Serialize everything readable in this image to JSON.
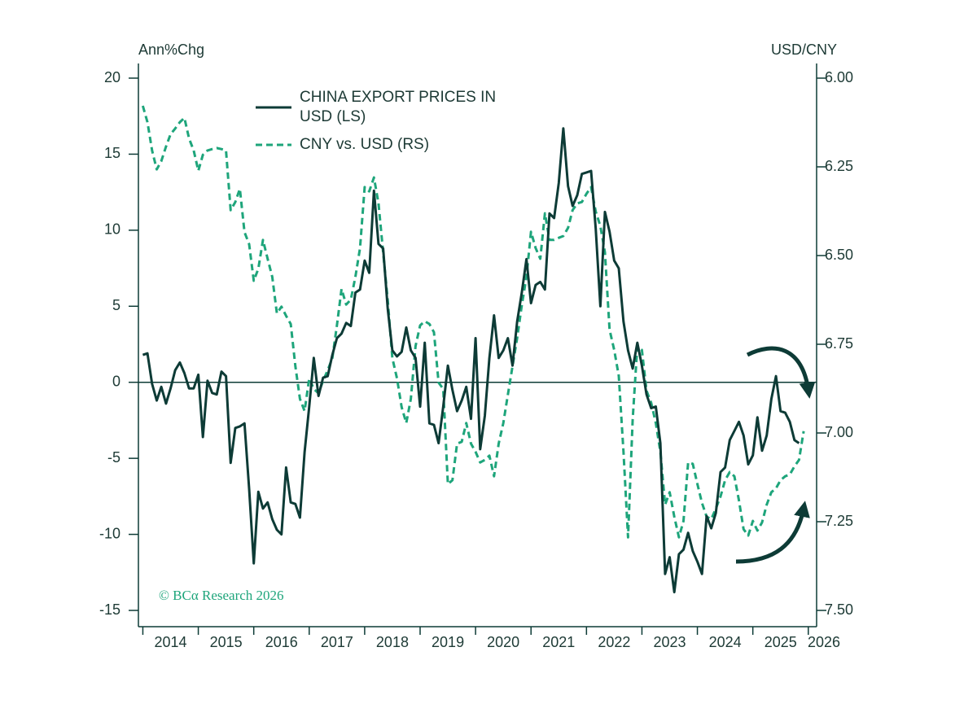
{
  "chart_data": {
    "type": "line",
    "y_label": "Ann%Chg",
    "y2_label": "USD/CNY",
    "source": "© BCα Research 2026",
    "x": [
      2014,
      2014.083,
      2014.167,
      2014.25,
      2014.333,
      2014.417,
      2014.5,
      2014.583,
      2014.667,
      2014.75,
      2014.833,
      2014.917,
      2015,
      2015.083,
      2015.167,
      2015.25,
      2015.333,
      2015.417,
      2015.5,
      2015.583,
      2015.667,
      2015.75,
      2015.833,
      2015.917,
      2016,
      2016.083,
      2016.167,
      2016.25,
      2016.333,
      2016.417,
      2016.5,
      2016.583,
      2016.667,
      2016.75,
      2016.833,
      2016.917,
      2017,
      2017.083,
      2017.167,
      2017.25,
      2017.333,
      2017.417,
      2017.5,
      2017.583,
      2017.667,
      2017.75,
      2017.833,
      2017.917,
      2018,
      2018.083,
      2018.167,
      2018.25,
      2018.333,
      2018.417,
      2018.5,
      2018.583,
      2018.667,
      2018.75,
      2018.833,
      2018.917,
      2019,
      2019.083,
      2019.167,
      2019.25,
      2019.333,
      2019.417,
      2019.5,
      2019.583,
      2019.667,
      2019.75,
      2019.833,
      2019.917,
      2020,
      2020.083,
      2020.167,
      2020.25,
      2020.333,
      2020.417,
      2020.5,
      2020.583,
      2020.667,
      2020.75,
      2020.833,
      2020.917,
      2021,
      2021.083,
      2021.167,
      2021.25,
      2021.333,
      2021.417,
      2021.5,
      2021.583,
      2021.667,
      2021.75,
      2021.833,
      2021.917,
      2022,
      2022.083,
      2022.167,
      2022.25,
      2022.333,
      2022.417,
      2022.5,
      2022.583,
      2022.667,
      2022.75,
      2022.833,
      2022.917,
      2023,
      2023.083,
      2023.167,
      2023.25,
      2023.333,
      2023.417,
      2023.5,
      2023.583,
      2023.667,
      2023.75,
      2023.833,
      2023.917,
      2024,
      2024.083,
      2024.167,
      2024.25,
      2024.333,
      2024.417,
      2024.5,
      2024.583,
      2024.667,
      2024.75,
      2024.833,
      2024.917,
      2025,
      2025.083,
      2025.167,
      2025.25,
      2025.333,
      2025.417,
      2025.5,
      2025.583,
      2025.667,
      2025.75,
      2025.833,
      2025.917
    ],
    "series": [
      {
        "name": "CHINA EXPORT PRICES IN USD (LS)",
        "color": "#0d3b36",
        "linestyle": "solid",
        "values": [
          1.8,
          1.9,
          -0.1,
          -1.2,
          -0.3,
          -1.4,
          -0.4,
          0.8,
          1.3,
          0.6,
          -0.4,
          -0.4,
          0.5,
          -3.6,
          0.1,
          -0.7,
          -0.8,
          0.7,
          0.4,
          -5.3,
          -3.0,
          -2.9,
          -2.7,
          -7.0,
          -11.9,
          -7.2,
          -8.3,
          -7.9,
          -9.0,
          -9.7,
          -10.0,
          -5.6,
          -7.9,
          -8.0,
          -8.9,
          -4.6,
          -1.6,
          1.6,
          -0.9,
          0.3,
          0.4,
          1.8,
          2.9,
          3.2,
          3.9,
          3.7,
          5.9,
          6.1,
          8.0,
          7.2,
          12.6,
          9.1,
          8.8,
          4.8,
          2.1,
          1.7,
          2.0,
          3.6,
          2.1,
          1.6,
          -1.6,
          2.6,
          -2.7,
          -2.8,
          -4.0,
          -1.6,
          1.1,
          -0.5,
          -1.9,
          -1.2,
          -0.3,
          -2.4,
          2.9,
          -4.4,
          -2.2,
          1.6,
          4.4,
          1.6,
          2.1,
          2.9,
          1.1,
          4.0,
          5.9,
          8.1,
          5.2,
          6.4,
          6.6,
          6.1,
          11.1,
          10.8,
          13.1,
          16.7,
          12.9,
          11.6,
          12.3,
          13.7,
          13.8,
          13.9,
          10.1,
          5.0,
          11.2,
          9.9,
          8.0,
          7.5,
          4.0,
          2.1,
          0.9,
          2.6,
          1.1,
          -0.8,
          -1.7,
          -1.6,
          -4.0,
          -12.6,
          -11.5,
          -13.8,
          -11.3,
          -11.0,
          -9.9,
          -11.1,
          -11.8,
          -12.6,
          -8.8,
          -9.6,
          -8.6,
          -5.9,
          -5.6,
          -3.8,
          -3.2,
          -2.6,
          -3.5,
          -5.4,
          -4.8,
          -2.3,
          -4.5,
          -3.5,
          -1.1,
          0.4,
          -1.9,
          -2.0,
          -2.6,
          -3.8,
          -4.0,
          null
        ]
      },
      {
        "name": "CNY vs. USD (RS)",
        "color": "#1ea57b",
        "linestyle": "dashed",
        "axis": "y2",
        "values": [
          6.078,
          6.124,
          6.204,
          6.257,
          6.234,
          6.193,
          6.158,
          6.142,
          6.124,
          6.112,
          6.17,
          6.204,
          6.261,
          6.216,
          6.204,
          6.2,
          6.197,
          6.2,
          6.204,
          6.372,
          6.349,
          6.312,
          6.434,
          6.468,
          6.571,
          6.537,
          6.456,
          6.509,
          6.56,
          6.663,
          6.644,
          6.67,
          6.693,
          6.812,
          6.904,
          6.938,
          6.846,
          6.876,
          6.888,
          6.853,
          6.823,
          6.789,
          6.697,
          6.594,
          6.638,
          6.624,
          6.56,
          6.479,
          6.307,
          6.319,
          6.28,
          6.353,
          6.491,
          6.628,
          6.789,
          6.846,
          6.927,
          6.972,
          6.904,
          6.755,
          6.697,
          6.685,
          6.693,
          6.716,
          6.858,
          6.876,
          7.144,
          7.133,
          7.03,
          7.025,
          6.972,
          7.03,
          7.053,
          7.083,
          7.076,
          7.064,
          7.122,
          7.03,
          6.972,
          6.892,
          6.812,
          6.732,
          6.64,
          6.56,
          6.433,
          6.479,
          6.509,
          6.381,
          6.456,
          6.456,
          6.45,
          6.445,
          6.422,
          6.372,
          6.353,
          6.349,
          6.326,
          6.307,
          6.376,
          6.417,
          6.491,
          6.709,
          6.766,
          6.839,
          7.053,
          7.294,
          6.961,
          6.755,
          6.766,
          6.881,
          6.915,
          6.972,
          7.053,
          7.202,
          7.167,
          7.236,
          7.294,
          7.248,
          7.083,
          7.087,
          7.144,
          7.197,
          7.236,
          7.243,
          7.213,
          7.179,
          7.133,
          7.11,
          7.122,
          7.19,
          7.271,
          7.289,
          7.248,
          7.275,
          7.252,
          7.202,
          7.167,
          7.156,
          7.133,
          7.122,
          7.117,
          7.094,
          7.076,
          6.995
        ]
      }
    ],
    "xlim": [
      2013.92,
      2026.15
    ],
    "xticks": [
      2014,
      2015,
      2016,
      2017,
      2018,
      2019,
      2020,
      2021,
      2022,
      2023,
      2024,
      2025,
      2026
    ],
    "ylim": [
      -15,
      20
    ],
    "yticks": [
      20,
      15,
      10,
      5,
      0,
      -5,
      -10,
      -15
    ],
    "y2lim": [
      7.5,
      6.0
    ],
    "y2ticks": [
      {
        "value": 6.0,
        "label": "6.00"
      },
      6.25,
      {
        "value": 6.5,
        "label": "6.50"
      },
      6.75,
      {
        "value": 7.0,
        "label": "7.00"
      },
      7.25,
      {
        "value": 7.5,
        "label": "7.50"
      }
    ],
    "hlines": [
      0
    ],
    "grid": false
  }
}
